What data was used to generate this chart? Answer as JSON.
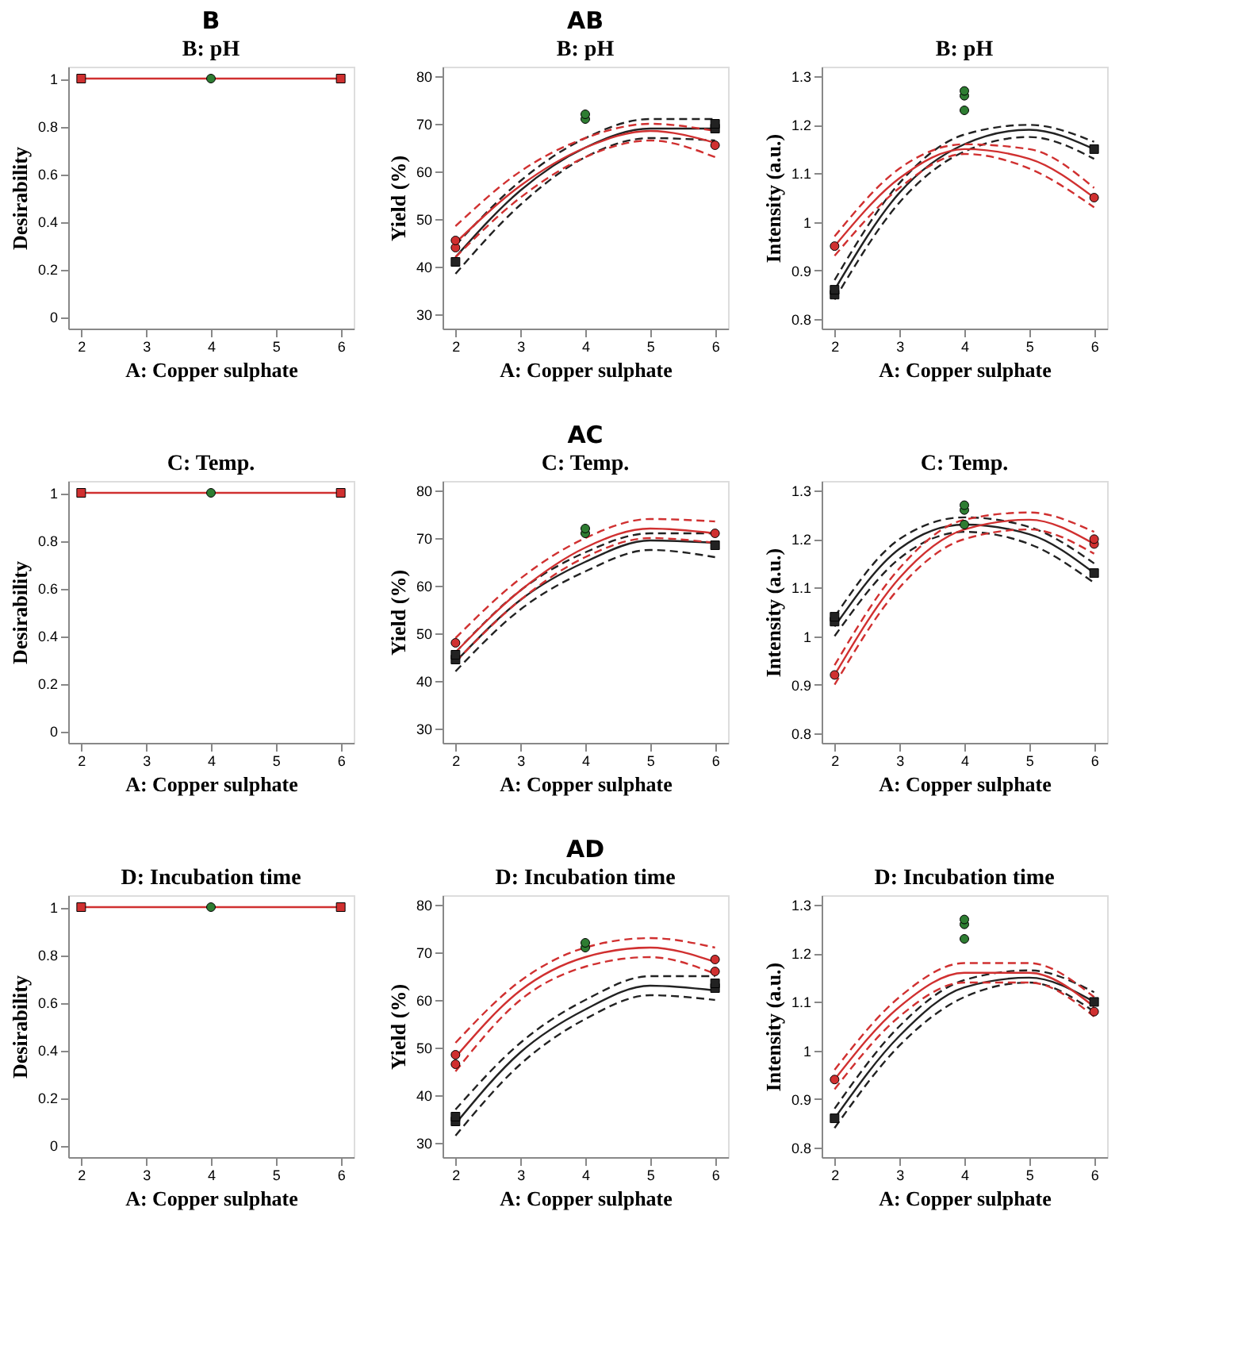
{
  "chart_data": [
    {
      "type": "line",
      "title": "B: pH",
      "annotations": [
        "B"
      ],
      "xlabel": "A: Copper sulphate",
      "ylabel": "Desirability",
      "xlim": [
        1.8,
        6.2
      ],
      "xticks": [
        2,
        3,
        4,
        5,
        6
      ],
      "ylim": [
        -0.05,
        1.05
      ],
      "yticks": [
        0,
        0.2,
        0.4,
        0.6,
        0.8,
        1
      ],
      "grid": false,
      "series": [
        {
          "type": "line",
          "color": "#d03030",
          "line_style": "solid",
          "x": [
            2,
            4,
            6
          ],
          "values": [
            1,
            1,
            1
          ]
        },
        {
          "type": "scatter",
          "marker": "square",
          "color": "#d03030",
          "x": [
            2,
            6
          ],
          "values": [
            1,
            1
          ]
        },
        {
          "type": "scatter",
          "marker": "circle",
          "color": "#2e7d32",
          "x": [
            4
          ],
          "values": [
            1
          ]
        }
      ]
    },
    {
      "type": "line",
      "title": "B: pH",
      "annotations": [
        "AB"
      ],
      "xlabel": "A: Copper sulphate",
      "ylabel": "Yield (%)",
      "xlim": [
        1.8,
        6.2
      ],
      "xticks": [
        2,
        3,
        4,
        5,
        6
      ],
      "ylim": [
        27,
        82
      ],
      "yticks": [
        30,
        40,
        50,
        60,
        70,
        80
      ],
      "grid": false,
      "series": [
        {
          "type": "line",
          "color": "#222222",
          "line_style": "solid",
          "x": [
            2,
            3,
            4,
            5,
            6
          ],
          "values": [
            42,
            56,
            65,
            69,
            69
          ]
        },
        {
          "type": "line",
          "color": "#222222",
          "line_style": "dashed",
          "x": [
            2,
            3,
            4,
            5,
            6
          ],
          "values": [
            44.5,
            58,
            67,
            71,
            71
          ]
        },
        {
          "type": "line",
          "color": "#222222",
          "line_style": "dashed",
          "x": [
            2,
            3,
            4,
            5,
            6
          ],
          "values": [
            38.5,
            53,
            63,
            67,
            66.5
          ]
        },
        {
          "type": "line",
          "color": "#d03030",
          "line_style": "solid",
          "x": [
            2,
            3,
            4,
            5,
            6
          ],
          "values": [
            45,
            57,
            65,
            68.5,
            66
          ]
        },
        {
          "type": "line",
          "color": "#d03030",
          "line_style": "dashed",
          "x": [
            2,
            3,
            4,
            5,
            6
          ],
          "values": [
            48.5,
            60,
            67,
            70,
            68.5
          ]
        },
        {
          "type": "line",
          "color": "#d03030",
          "line_style": "dashed",
          "x": [
            2,
            3,
            4,
            5,
            6
          ],
          "values": [
            42,
            54.5,
            63,
            66.5,
            63
          ]
        },
        {
          "type": "scatter",
          "marker": "square",
          "color": "#222222",
          "x": [
            2,
            6,
            6
          ],
          "values": [
            41,
            69,
            70
          ]
        },
        {
          "type": "scatter",
          "marker": "circle",
          "color": "#d03030",
          "x": [
            2,
            2,
            6
          ],
          "values": [
            44,
            45.5,
            65.5
          ]
        },
        {
          "type": "scatter",
          "marker": "circle",
          "color": "#2e7d32",
          "x": [
            4,
            4
          ],
          "values": [
            71,
            72
          ]
        }
      ]
    },
    {
      "type": "line",
      "title": "B: pH",
      "xlabel": "A: Copper sulphate",
      "ylabel": "Intensity (a.u.)",
      "xlim": [
        1.8,
        6.2
      ],
      "xticks": [
        2,
        3,
        4,
        5,
        6
      ],
      "ylim": [
        0.78,
        1.32
      ],
      "yticks": [
        0.8,
        0.9,
        1,
        1.1,
        1.2,
        1.3
      ],
      "grid": false,
      "series": [
        {
          "type": "line",
          "color": "#222222",
          "line_style": "solid",
          "x": [
            2,
            3,
            4,
            5,
            6
          ],
          "values": [
            0.86,
            1.06,
            1.16,
            1.19,
            1.15
          ]
        },
        {
          "type": "line",
          "color": "#222222",
          "line_style": "dashed",
          "x": [
            2,
            3,
            4,
            5,
            6
          ],
          "values": [
            0.88,
            1.08,
            1.18,
            1.2,
            1.165
          ]
        },
        {
          "type": "line",
          "color": "#222222",
          "line_style": "dashed",
          "x": [
            2,
            3,
            4,
            5,
            6
          ],
          "values": [
            0.84,
            1.04,
            1.145,
            1.175,
            1.13
          ]
        },
        {
          "type": "line",
          "color": "#d03030",
          "line_style": "solid",
          "x": [
            2,
            3,
            4,
            5,
            6
          ],
          "values": [
            0.95,
            1.09,
            1.15,
            1.13,
            1.05
          ]
        },
        {
          "type": "line",
          "color": "#d03030",
          "line_style": "dashed",
          "x": [
            2,
            3,
            4,
            5,
            6
          ],
          "values": [
            0.97,
            1.11,
            1.16,
            1.15,
            1.07
          ]
        },
        {
          "type": "line",
          "color": "#d03030",
          "line_style": "dashed",
          "x": [
            2,
            3,
            4,
            5,
            6
          ],
          "values": [
            0.93,
            1.07,
            1.14,
            1.11,
            1.03
          ]
        },
        {
          "type": "scatter",
          "marker": "square",
          "color": "#222222",
          "x": [
            2,
            2,
            6
          ],
          "values": [
            0.85,
            0.86,
            1.15
          ]
        },
        {
          "type": "scatter",
          "marker": "circle",
          "color": "#d03030",
          "x": [
            2,
            6
          ],
          "values": [
            0.95,
            1.05
          ]
        },
        {
          "type": "scatter",
          "marker": "circle",
          "color": "#2e7d32",
          "x": [
            4,
            4,
            4
          ],
          "values": [
            1.23,
            1.26,
            1.27
          ]
        }
      ]
    },
    {
      "type": "line",
      "title": "C: Temp.",
      "xlabel": "A: Copper sulphate",
      "ylabel": "Desirability",
      "xlim": [
        1.8,
        6.2
      ],
      "xticks": [
        2,
        3,
        4,
        5,
        6
      ],
      "ylim": [
        -0.05,
        1.05
      ],
      "yticks": [
        0,
        0.2,
        0.4,
        0.6,
        0.8,
        1
      ],
      "grid": false,
      "series": [
        {
          "type": "line",
          "color": "#d03030",
          "line_style": "solid",
          "x": [
            2,
            4,
            6
          ],
          "values": [
            1,
            1,
            1
          ]
        },
        {
          "type": "scatter",
          "marker": "square",
          "color": "#d03030",
          "x": [
            2,
            6
          ],
          "values": [
            1,
            1
          ]
        },
        {
          "type": "scatter",
          "marker": "circle",
          "color": "#2e7d32",
          "x": [
            4
          ],
          "values": [
            1
          ]
        }
      ]
    },
    {
      "type": "line",
      "title": "C: Temp.",
      "annotations": [
        "AC"
      ],
      "xlabel": "A: Copper sulphate",
      "ylabel": "Yield (%)",
      "xlim": [
        1.8,
        6.2
      ],
      "xticks": [
        2,
        3,
        4,
        5,
        6
      ],
      "ylim": [
        27,
        82
      ],
      "yticks": [
        30,
        40,
        50,
        60,
        70,
        80
      ],
      "grid": false,
      "series": [
        {
          "type": "line",
          "color": "#222222",
          "line_style": "solid",
          "x": [
            2,
            3,
            4,
            5,
            6
          ],
          "values": [
            44,
            57,
            65,
            69.5,
            69
          ]
        },
        {
          "type": "line",
          "color": "#222222",
          "line_style": "dashed",
          "x": [
            2,
            3,
            4,
            5,
            6
          ],
          "values": [
            46,
            59,
            67,
            71,
            71
          ]
        },
        {
          "type": "line",
          "color": "#222222",
          "line_style": "dashed",
          "x": [
            2,
            3,
            4,
            5,
            6
          ],
          "values": [
            42,
            55,
            63,
            67.5,
            66
          ]
        },
        {
          "type": "line",
          "color": "#d03030",
          "line_style": "solid",
          "x": [
            2,
            3,
            4,
            5,
            6
          ],
          "values": [
            46,
            59,
            68,
            72,
            71
          ]
        },
        {
          "type": "line",
          "color": "#d03030",
          "line_style": "dashed",
          "x": [
            2,
            3,
            4,
            5,
            6
          ],
          "values": [
            49,
            61.5,
            70,
            74,
            73.5
          ]
        },
        {
          "type": "line",
          "color": "#d03030",
          "line_style": "dashed",
          "x": [
            2,
            3,
            4,
            5,
            6
          ],
          "values": [
            44,
            57,
            66,
            70,
            69
          ]
        },
        {
          "type": "scatter",
          "marker": "square",
          "color": "#222222",
          "x": [
            2,
            2,
            6
          ],
          "values": [
            44.5,
            45.5,
            68.5
          ]
        },
        {
          "type": "scatter",
          "marker": "circle",
          "color": "#d03030",
          "x": [
            2,
            6
          ],
          "values": [
            48,
            71
          ]
        },
        {
          "type": "scatter",
          "marker": "circle",
          "color": "#2e7d32",
          "x": [
            4,
            4
          ],
          "values": [
            71,
            72
          ]
        }
      ]
    },
    {
      "type": "line",
      "title": "C: Temp.",
      "xlabel": "A: Copper sulphate",
      "ylabel": "Intensity (a.u.)",
      "xlim": [
        1.8,
        6.2
      ],
      "xticks": [
        2,
        3,
        4,
        5,
        6
      ],
      "ylim": [
        0.78,
        1.32
      ],
      "yticks": [
        0.8,
        0.9,
        1,
        1.1,
        1.2,
        1.3
      ],
      "grid": false,
      "series": [
        {
          "type": "line",
          "color": "#222222",
          "line_style": "solid",
          "x": [
            2,
            3,
            4,
            5,
            6
          ],
          "values": [
            1.02,
            1.18,
            1.23,
            1.21,
            1.13
          ]
        },
        {
          "type": "line",
          "color": "#222222",
          "line_style": "dashed",
          "x": [
            2,
            3,
            4,
            5,
            6
          ],
          "values": [
            1.04,
            1.2,
            1.245,
            1.225,
            1.15
          ]
        },
        {
          "type": "line",
          "color": "#222222",
          "line_style": "dashed",
          "x": [
            2,
            3,
            4,
            5,
            6
          ],
          "values": [
            1.0,
            1.16,
            1.215,
            1.19,
            1.11
          ]
        },
        {
          "type": "line",
          "color": "#d03030",
          "line_style": "solid",
          "x": [
            2,
            3,
            4,
            5,
            6
          ],
          "values": [
            0.92,
            1.12,
            1.22,
            1.24,
            1.19
          ]
        },
        {
          "type": "line",
          "color": "#d03030",
          "line_style": "dashed",
          "x": [
            2,
            3,
            4,
            5,
            6
          ],
          "values": [
            0.94,
            1.14,
            1.24,
            1.255,
            1.215
          ]
        },
        {
          "type": "line",
          "color": "#d03030",
          "line_style": "dashed",
          "x": [
            2,
            3,
            4,
            5,
            6
          ],
          "values": [
            0.9,
            1.1,
            1.2,
            1.22,
            1.17
          ]
        },
        {
          "type": "scatter",
          "marker": "square",
          "color": "#222222",
          "x": [
            2,
            2,
            6
          ],
          "values": [
            1.03,
            1.04,
            1.13
          ]
        },
        {
          "type": "scatter",
          "marker": "circle",
          "color": "#d03030",
          "x": [
            2,
            6,
            6
          ],
          "values": [
            0.92,
            1.19,
            1.2
          ]
        },
        {
          "type": "scatter",
          "marker": "circle",
          "color": "#2e7d32",
          "x": [
            4,
            4,
            4
          ],
          "values": [
            1.23,
            1.26,
            1.27
          ]
        }
      ]
    },
    {
      "type": "line",
      "title": "D: Incubation time",
      "xlabel": "A: Copper sulphate",
      "ylabel": "Desirability",
      "xlim": [
        1.8,
        6.2
      ],
      "xticks": [
        2,
        3,
        4,
        5,
        6
      ],
      "ylim": [
        -0.05,
        1.05
      ],
      "yticks": [
        0,
        0.2,
        0.4,
        0.6,
        0.8,
        1
      ],
      "grid": false,
      "series": [
        {
          "type": "line",
          "color": "#d03030",
          "line_style": "solid",
          "x": [
            2,
            4,
            6
          ],
          "values": [
            1,
            1,
            1
          ]
        },
        {
          "type": "scatter",
          "marker": "square",
          "color": "#d03030",
          "x": [
            2,
            6
          ],
          "values": [
            1,
            1
          ]
        },
        {
          "type": "scatter",
          "marker": "circle",
          "color": "#2e7d32",
          "x": [
            4
          ],
          "values": [
            1
          ]
        }
      ]
    },
    {
      "type": "line",
      "title": "D: Incubation time",
      "annotations": [
        "AD"
      ],
      "xlabel": "A: Copper sulphate",
      "ylabel": "Yield (%)",
      "xlim": [
        1.8,
        6.2
      ],
      "xticks": [
        2,
        3,
        4,
        5,
        6
      ],
      "ylim": [
        27,
        82
      ],
      "yticks": [
        30,
        40,
        50,
        60,
        70,
        80
      ],
      "grid": false,
      "series": [
        {
          "type": "line",
          "color": "#222222",
          "line_style": "solid",
          "x": [
            2,
            3,
            4,
            5,
            6
          ],
          "values": [
            34,
            49,
            58,
            63,
            62
          ]
        },
        {
          "type": "line",
          "color": "#222222",
          "line_style": "dashed",
          "x": [
            2,
            3,
            4,
            5,
            6
          ],
          "values": [
            37,
            51,
            60,
            65,
            65
          ]
        },
        {
          "type": "line",
          "color": "#222222",
          "line_style": "dashed",
          "x": [
            2,
            3,
            4,
            5,
            6
          ],
          "values": [
            31.5,
            46.5,
            56,
            61,
            60
          ]
        },
        {
          "type": "line",
          "color": "#d03030",
          "line_style": "solid",
          "x": [
            2,
            3,
            4,
            5,
            6
          ],
          "values": [
            48,
            62,
            69,
            71,
            68
          ]
        },
        {
          "type": "line",
          "color": "#d03030",
          "line_style": "dashed",
          "x": [
            2,
            3,
            4,
            5,
            6
          ],
          "values": [
            51,
            64,
            71,
            73,
            71
          ]
        },
        {
          "type": "line",
          "color": "#d03030",
          "line_style": "dashed",
          "x": [
            2,
            3,
            4,
            5,
            6
          ],
          "values": [
            45,
            60,
            67,
            69,
            65.5
          ]
        },
        {
          "type": "scatter",
          "marker": "square",
          "color": "#222222",
          "x": [
            2,
            2,
            6,
            6
          ],
          "values": [
            34.5,
            35.5,
            62.5,
            63.5
          ]
        },
        {
          "type": "scatter",
          "marker": "circle",
          "color": "#d03030",
          "x": [
            2,
            2,
            6,
            6
          ],
          "values": [
            46.5,
            48.5,
            66,
            68.5
          ]
        },
        {
          "type": "scatter",
          "marker": "circle",
          "color": "#2e7d32",
          "x": [
            4,
            4
          ],
          "values": [
            71,
            72
          ]
        }
      ]
    },
    {
      "type": "line",
      "title": "D: Incubation time",
      "xlabel": "A: Copper sulphate",
      "ylabel": "Intensity (a.u.)",
      "xlim": [
        1.8,
        6.2
      ],
      "xticks": [
        2,
        3,
        4,
        5,
        6
      ],
      "ylim": [
        0.78,
        1.32
      ],
      "yticks": [
        0.8,
        0.9,
        1,
        1.1,
        1.2,
        1.3
      ],
      "grid": false,
      "series": [
        {
          "type": "line",
          "color": "#222222",
          "line_style": "solid",
          "x": [
            2,
            3,
            4,
            5,
            6
          ],
          "values": [
            0.86,
            1.03,
            1.13,
            1.15,
            1.1
          ]
        },
        {
          "type": "line",
          "color": "#222222",
          "line_style": "dashed",
          "x": [
            2,
            3,
            4,
            5,
            6
          ],
          "values": [
            0.88,
            1.05,
            1.145,
            1.165,
            1.12
          ]
        },
        {
          "type": "line",
          "color": "#222222",
          "line_style": "dashed",
          "x": [
            2,
            3,
            4,
            5,
            6
          ],
          "values": [
            0.84,
            1.01,
            1.11,
            1.14,
            1.08
          ]
        },
        {
          "type": "line",
          "color": "#d03030",
          "line_style": "solid",
          "x": [
            2,
            3,
            4,
            5,
            6
          ],
          "values": [
            0.94,
            1.09,
            1.16,
            1.16,
            1.09
          ]
        },
        {
          "type": "line",
          "color": "#d03030",
          "line_style": "dashed",
          "x": [
            2,
            3,
            4,
            5,
            6
          ],
          "values": [
            0.96,
            1.11,
            1.18,
            1.18,
            1.11
          ]
        },
        {
          "type": "line",
          "color": "#d03030",
          "line_style": "dashed",
          "x": [
            2,
            3,
            4,
            5,
            6
          ],
          "values": [
            0.92,
            1.07,
            1.14,
            1.14,
            1.07
          ]
        },
        {
          "type": "scatter",
          "marker": "square",
          "color": "#222222",
          "x": [
            2,
            6
          ],
          "values": [
            0.86,
            1.1
          ]
        },
        {
          "type": "scatter",
          "marker": "circle",
          "color": "#d03030",
          "x": [
            2,
            6
          ],
          "values": [
            0.94,
            1.08
          ]
        },
        {
          "type": "scatter",
          "marker": "circle",
          "color": "#2e7d32",
          "x": [
            4,
            4,
            4
          ],
          "values": [
            1.23,
            1.26,
            1.27
          ]
        }
      ]
    }
  ]
}
